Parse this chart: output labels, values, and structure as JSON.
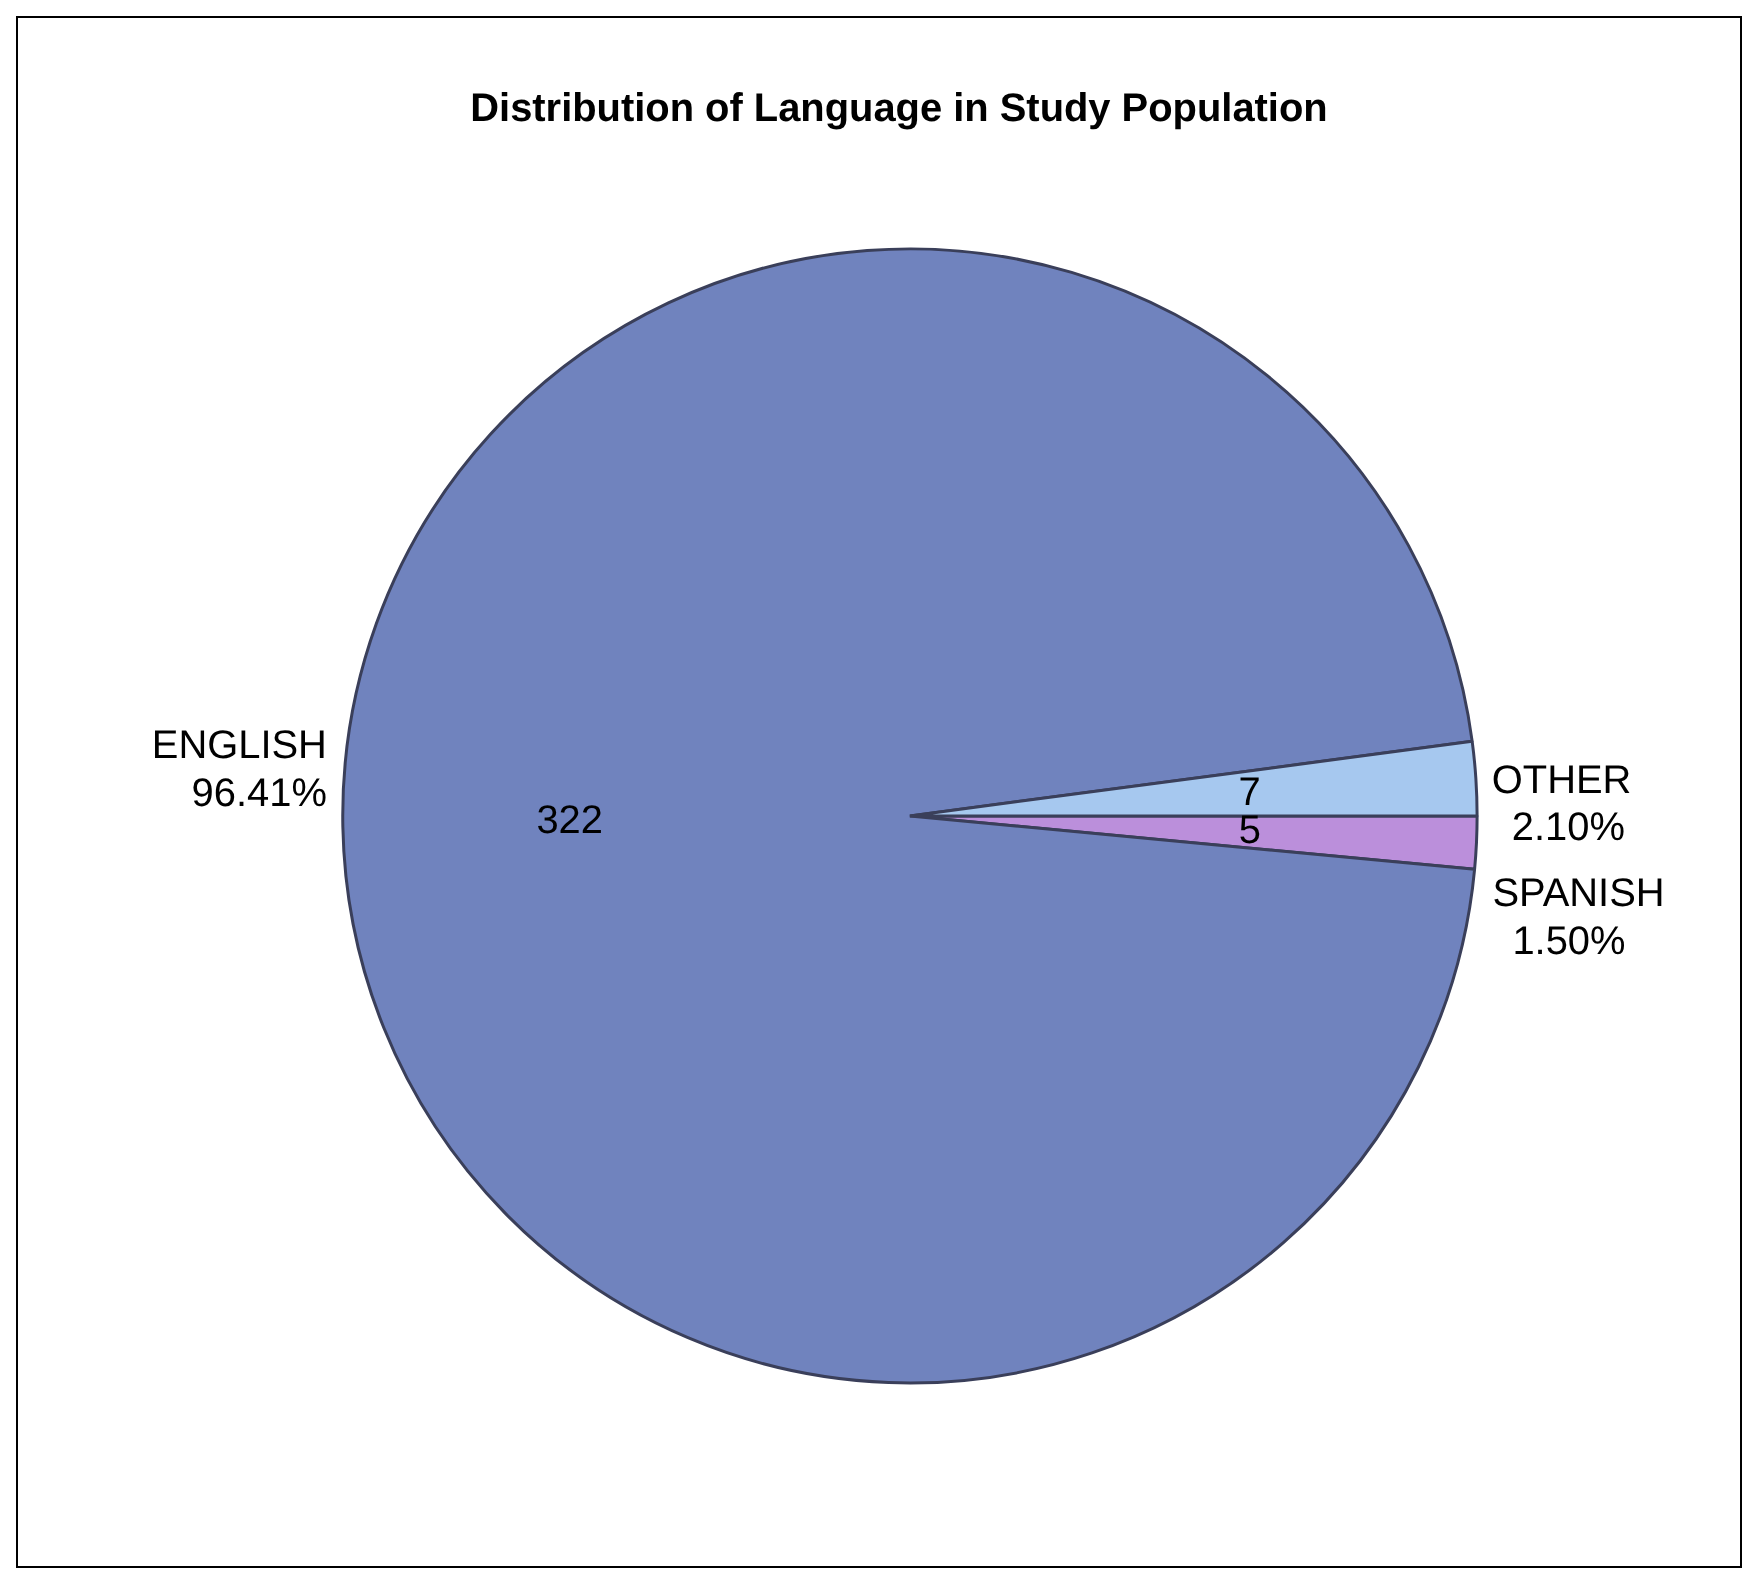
{
  "chart_data": {
    "type": "pie",
    "title": "Distribution of Language in Study Population",
    "categories": [
      "SPANISH",
      "ENGLISH",
      "OTHER"
    ],
    "values": [
      1.5,
      96.41,
      2.1
    ],
    "colors": [
      "#bb8fdb",
      "#7083be",
      "#a6c8ef"
    ],
    "value_labels": [
      "1.50%",
      "96.41%",
      "2.10%"
    ],
    "annotations": [
      {
        "text": "5",
        "x": "SPANISH"
      },
      {
        "text": "322",
        "x": "ENGLISH"
      },
      {
        "text": "7",
        "x": "OTHER"
      }
    ],
    "legend": false
  }
}
